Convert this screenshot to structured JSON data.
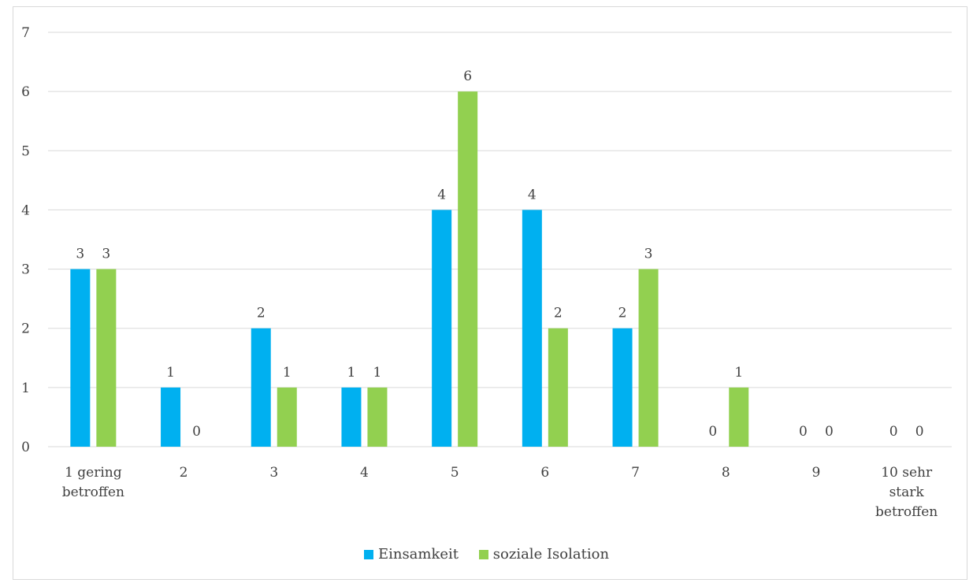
{
  "chart_data": {
    "type": "bar",
    "categories": [
      "1 gering betroffen",
      "2",
      "3",
      "4",
      "5",
      "6",
      "7",
      "8",
      "9",
      "10 sehr stark betroffen"
    ],
    "series": [
      {
        "name": "Einsamkeit",
        "color": "#00b0f0",
        "values": [
          3,
          1,
          2,
          1,
          4,
          4,
          2,
          0,
          0,
          0
        ]
      },
      {
        "name": "soziale Isolation",
        "color": "#92d050",
        "values": [
          3,
          0,
          1,
          1,
          6,
          2,
          3,
          1,
          0,
          0
        ]
      }
    ],
    "title": "",
    "xlabel": "",
    "ylabel": "",
    "ylim": [
      0,
      7
    ],
    "yticks": [
      0,
      1,
      2,
      3,
      4,
      5,
      6,
      7
    ],
    "grid": true,
    "legend": "bottom",
    "data_labels": true
  }
}
